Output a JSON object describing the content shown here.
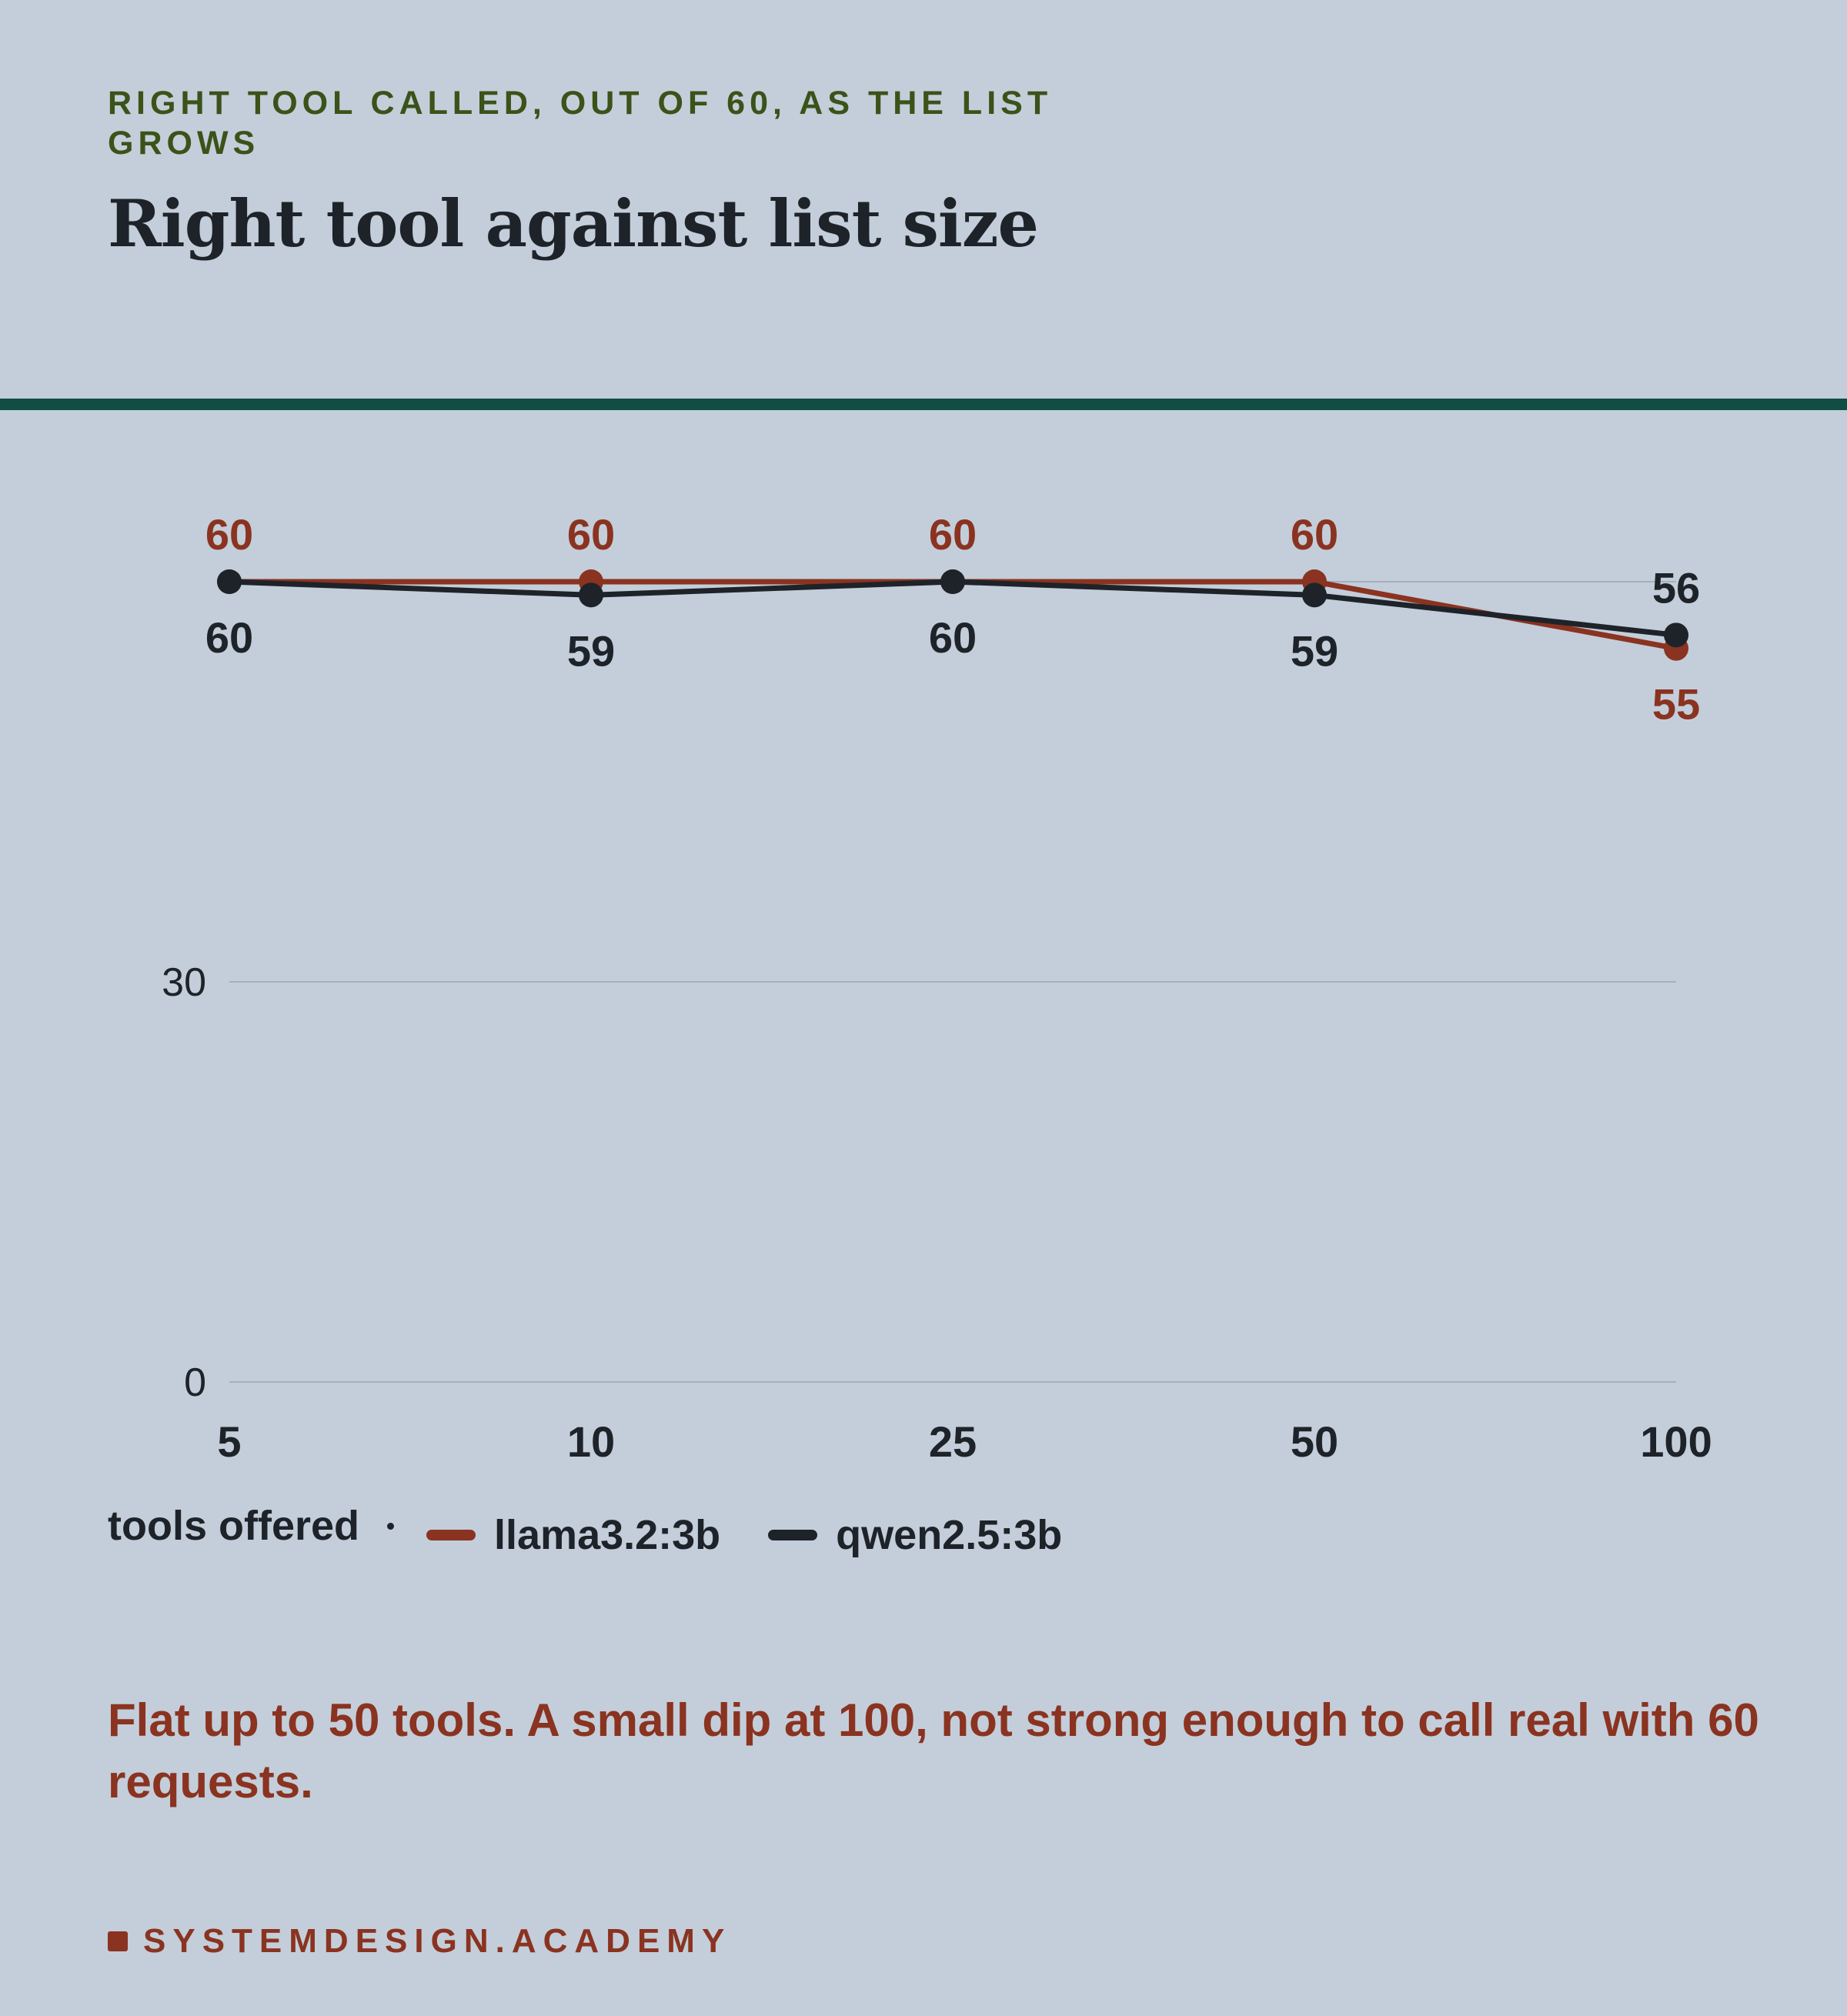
{
  "eyebrow": "RIGHT TOOL CALLED, OUT OF 60, AS THE LIST GROWS",
  "title": "Right tool against list size",
  "caption": "Flat up to 50 tools. A small dip at 100, not strong enough to call real with 60 requests.",
  "footer": "SYSTEMDESIGN.ACADEMY",
  "colors": {
    "background": "#c3ceda",
    "accent_rule": "#124d43",
    "eyebrow": "#3b5219",
    "llama": "#8a3320",
    "qwen": "#1e2329",
    "grid": "#a3b0bf"
  },
  "chart_data": {
    "type": "line",
    "categories": [
      "5",
      "10",
      "25",
      "50",
      "100"
    ],
    "xlabel": "tools offered",
    "ylabel": "",
    "ylim": [
      0,
      60
    ],
    "yticks": [
      0,
      30
    ],
    "grid": true,
    "legend_position": "bottom-left",
    "series": [
      {
        "name": "llama3.2:3b",
        "color": "#8a3320",
        "values": [
          60,
          60,
          60,
          60,
          55
        ]
      },
      {
        "name": "qwen2.5:3b",
        "color": "#1e2329",
        "values": [
          60,
          59,
          60,
          59,
          56
        ]
      }
    ]
  }
}
